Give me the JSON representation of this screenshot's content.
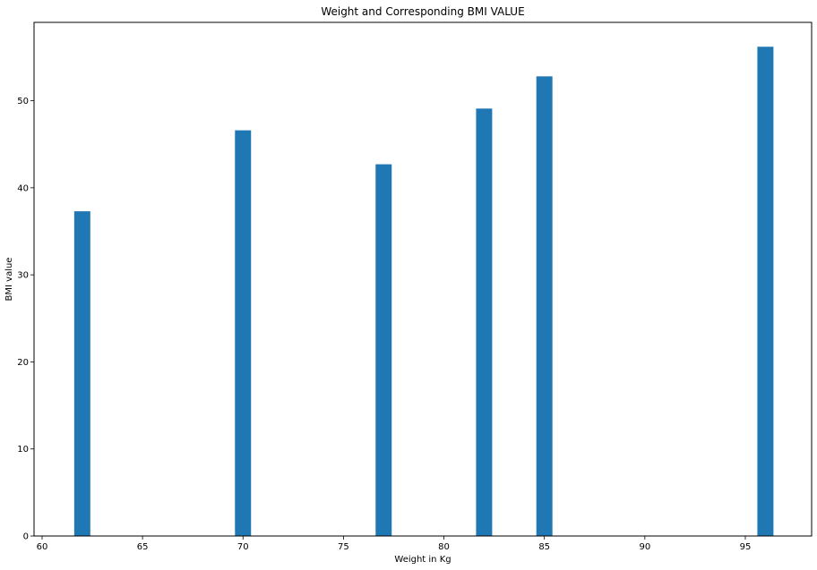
{
  "chart_data": {
    "type": "bar",
    "title": "Weight and Corresponding BMI VALUE",
    "xlabel": "Weight in Kg",
    "ylabel": "BMI value",
    "x": [
      62,
      70,
      77,
      82,
      85,
      96
    ],
    "values": [
      37.3,
      46.6,
      42.7,
      49.1,
      52.8,
      56.2
    ],
    "bar_width": 0.8,
    "xlim": [
      59.6,
      98.3
    ],
    "ylim": [
      0,
      59
    ],
    "xticks": [
      60,
      65,
      70,
      75,
      80,
      85,
      90,
      95
    ],
    "yticks": [
      0,
      10,
      20,
      30,
      40,
      50
    ],
    "grid": false,
    "bar_color": "#1f77b4"
  }
}
